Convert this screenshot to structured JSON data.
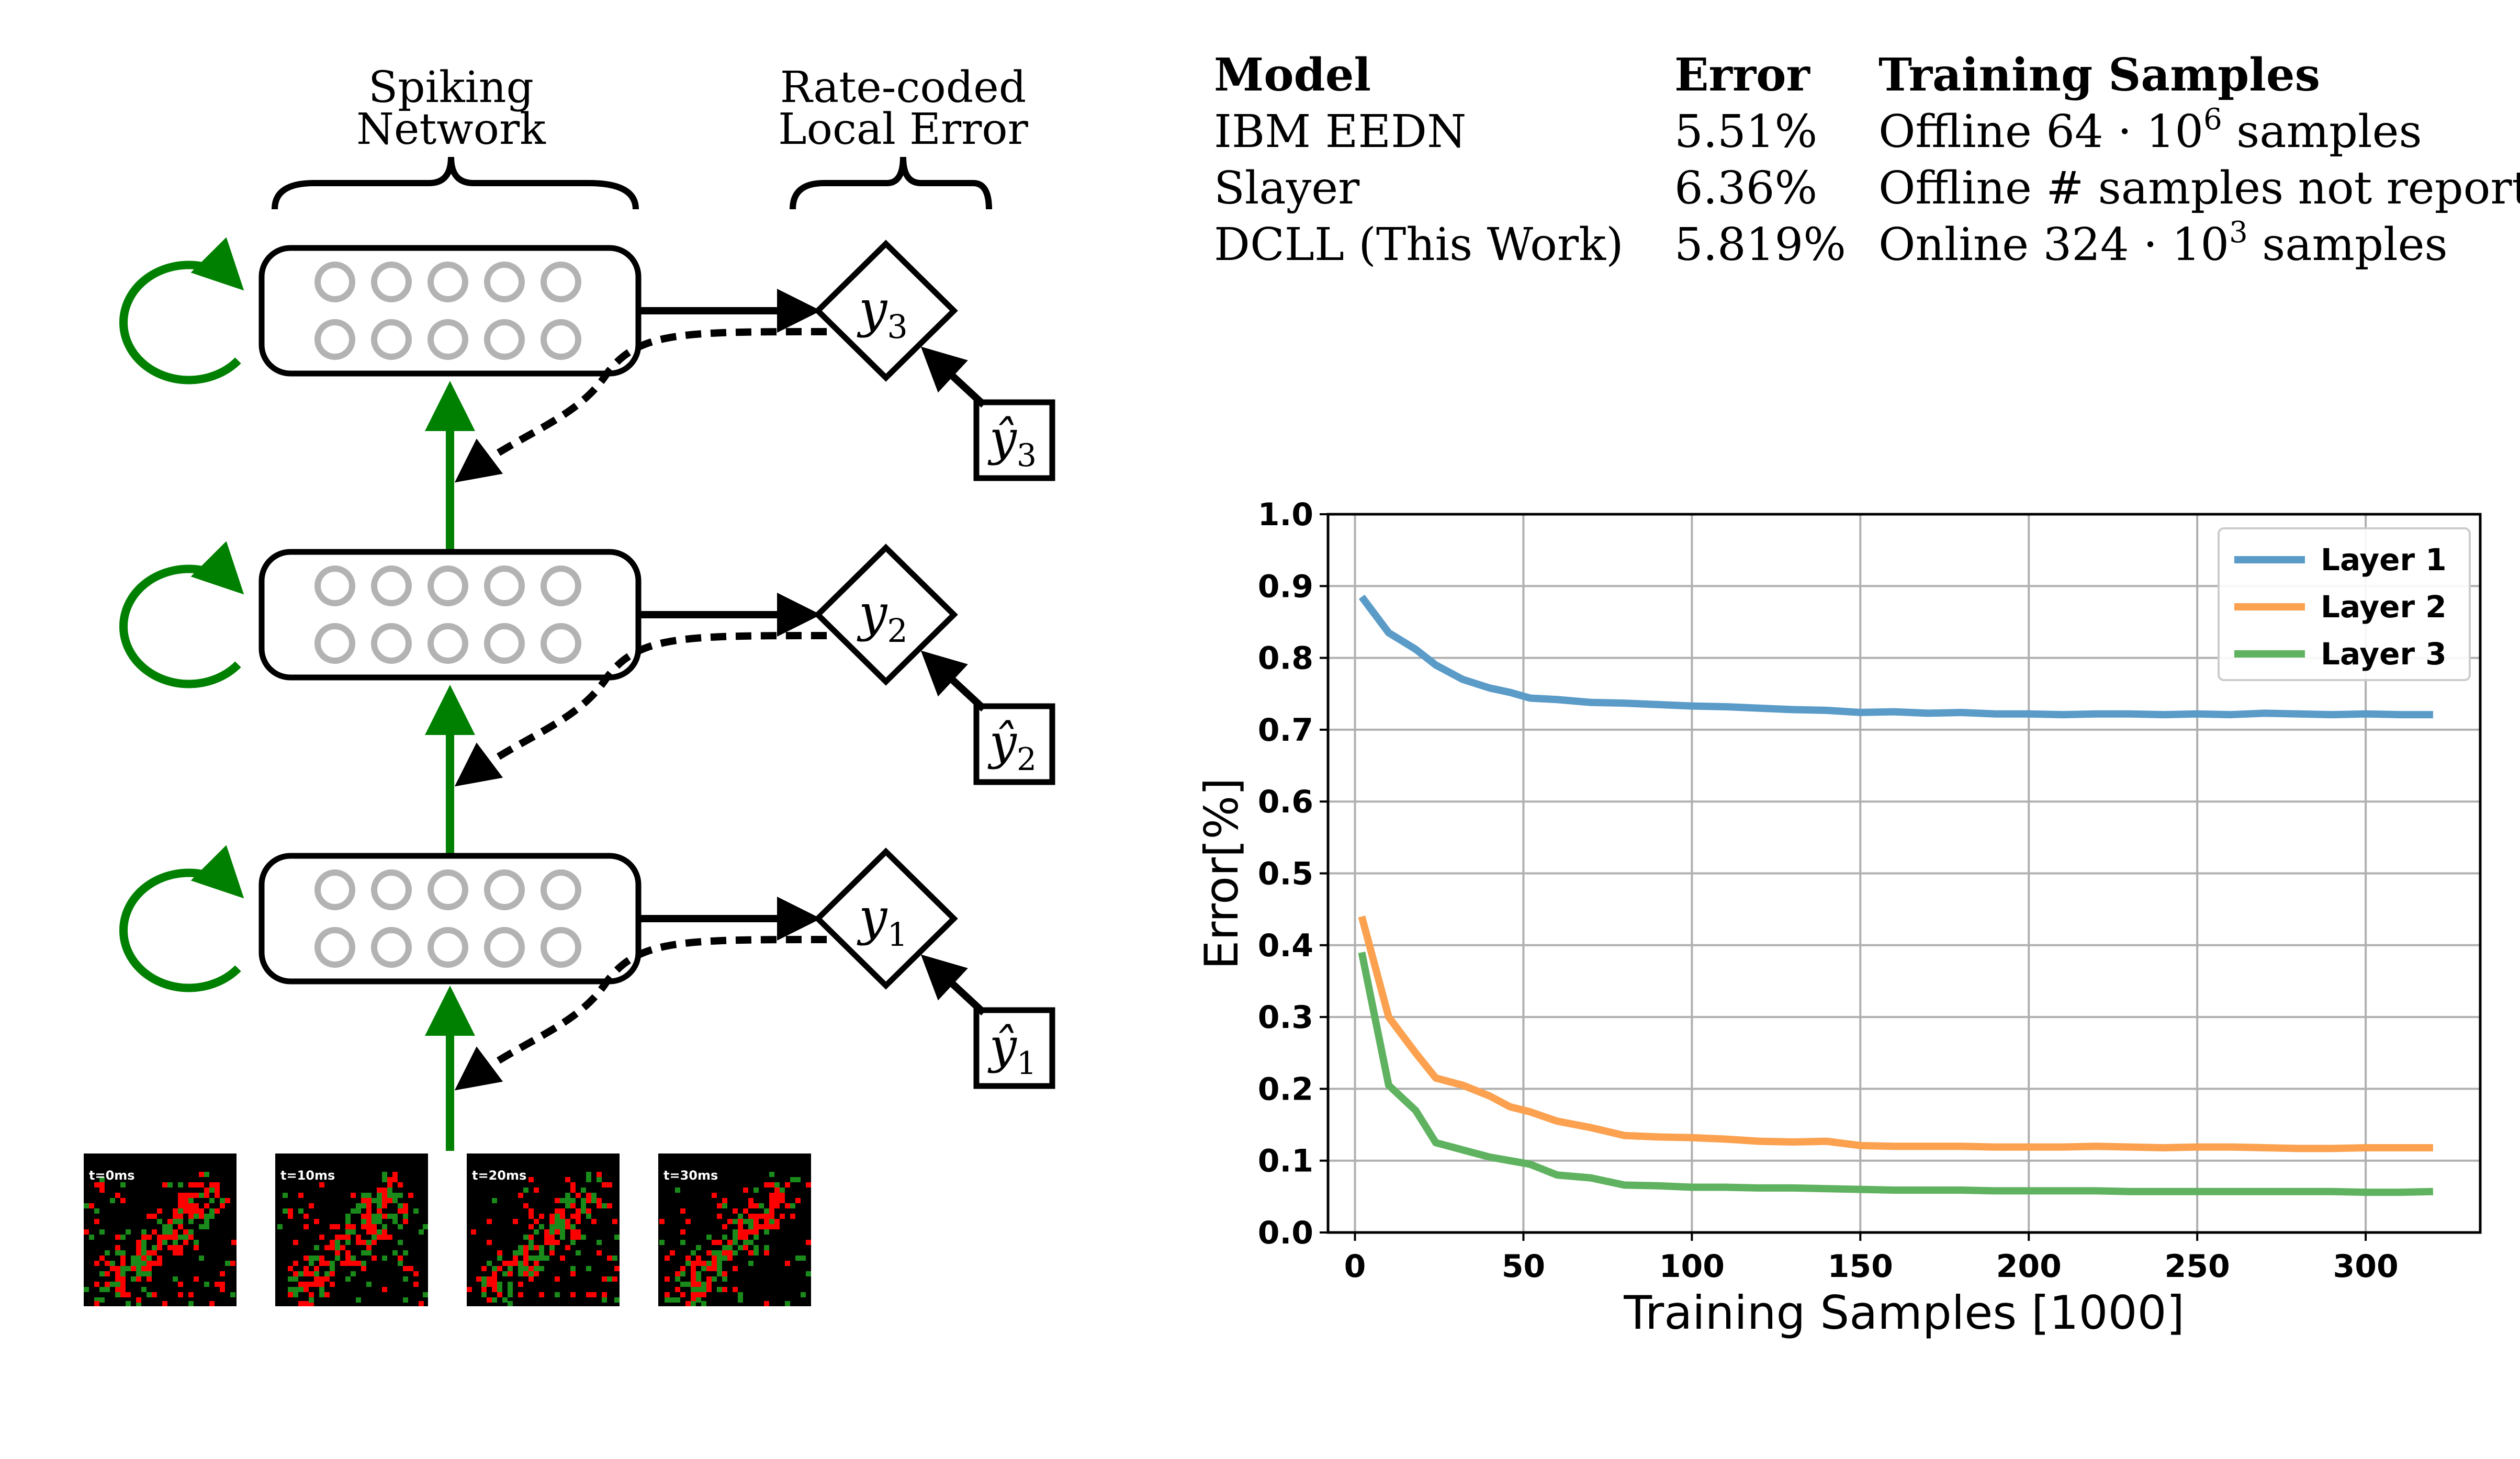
{
  "diagram": {
    "bracket_labels": {
      "spiking_network": [
        "Spiking",
        "Network"
      ],
      "local_error": [
        "Rate-coded",
        "Local Error"
      ]
    },
    "layers": [
      {
        "output": "y",
        "output_sub": "3",
        "target": "ŷ",
        "target_sub": "3"
      },
      {
        "output": "y",
        "output_sub": "2",
        "target": "ŷ",
        "target_sub": "2"
      },
      {
        "output": "y",
        "output_sub": "1",
        "target": "ŷ",
        "target_sub": "1"
      }
    ],
    "input_frames": [
      "t=0ms",
      "t=10ms",
      "t=20ms",
      "t=30ms"
    ],
    "colors": {
      "feedforward": "#008000",
      "neuron": "#b3b3b3",
      "event_on": "#ff0000",
      "event_off": "#1a8a1a",
      "frame_bg": "#000000"
    }
  },
  "table": {
    "headers": {
      "model": "Model",
      "error": "Error",
      "samples": "Training Samples"
    },
    "rows": [
      {
        "model": "IBM EEDN",
        "error": "5.51%",
        "samples_pre": "Offline 64 · 10",
        "samples_exp": "6",
        "samples_post": " samples"
      },
      {
        "model": "Slayer",
        "error": "6.36%",
        "samples_pre": "Offline # samples not reported",
        "samples_exp": "",
        "samples_post": ""
      },
      {
        "model": "DCLL (This Work)",
        "error": "5.819%",
        "samples_pre": "Online 324 · 10",
        "samples_exp": "3",
        "samples_post": " samples"
      }
    ]
  },
  "chart_data": {
    "type": "line",
    "title": "",
    "xlabel": "Training Samples [1000]",
    "ylabel": "Error[%]",
    "xlim": [
      -8,
      334
    ],
    "ylim": [
      0.0,
      1.0
    ],
    "xticks": [
      0,
      50,
      100,
      150,
      200,
      250,
      300
    ],
    "yticks": [
      0.0,
      0.1,
      0.2,
      0.3,
      0.4,
      0.5,
      0.6,
      0.7,
      0.8,
      0.9,
      1.0
    ],
    "grid": true,
    "legend": "top-right",
    "x": [
      2,
      10,
      18,
      24,
      32,
      40,
      46,
      52,
      60,
      70,
      80,
      90,
      100,
      110,
      120,
      130,
      140,
      150,
      160,
      170,
      180,
      190,
      200,
      210,
      220,
      230,
      240,
      250,
      260,
      270,
      280,
      290,
      300,
      310,
      320
    ],
    "series": [
      {
        "name": "Layer 1",
        "color": "#5a9bc8",
        "values": [
          0.885,
          0.835,
          0.812,
          0.79,
          0.77,
          0.758,
          0.752,
          0.744,
          0.742,
          0.738,
          0.737,
          0.735,
          0.733,
          0.732,
          0.73,
          0.728,
          0.727,
          0.724,
          0.725,
          0.723,
          0.724,
          0.722,
          0.722,
          0.721,
          0.722,
          0.722,
          0.721,
          0.722,
          0.721,
          0.723,
          0.722,
          0.721,
          0.722,
          0.721,
          0.721
        ]
      },
      {
        "name": "Layer 2",
        "color": "#fba14f",
        "values": [
          0.44,
          0.3,
          0.25,
          0.215,
          0.205,
          0.19,
          0.175,
          0.168,
          0.155,
          0.146,
          0.135,
          0.133,
          0.132,
          0.13,
          0.127,
          0.126,
          0.127,
          0.121,
          0.12,
          0.12,
          0.12,
          0.119,
          0.119,
          0.119,
          0.12,
          0.119,
          0.118,
          0.119,
          0.119,
          0.118,
          0.117,
          0.117,
          0.118,
          0.118,
          0.118
        ]
      },
      {
        "name": "Layer 3",
        "color": "#5fb25f",
        "values": [
          0.39,
          0.205,
          0.17,
          0.125,
          0.115,
          0.105,
          0.1,
          0.095,
          0.08,
          0.076,
          0.066,
          0.065,
          0.063,
          0.063,
          0.062,
          0.062,
          0.061,
          0.06,
          0.059,
          0.059,
          0.059,
          0.058,
          0.058,
          0.058,
          0.058,
          0.057,
          0.057,
          0.057,
          0.057,
          0.057,
          0.057,
          0.057,
          0.056,
          0.056,
          0.057
        ]
      }
    ]
  }
}
